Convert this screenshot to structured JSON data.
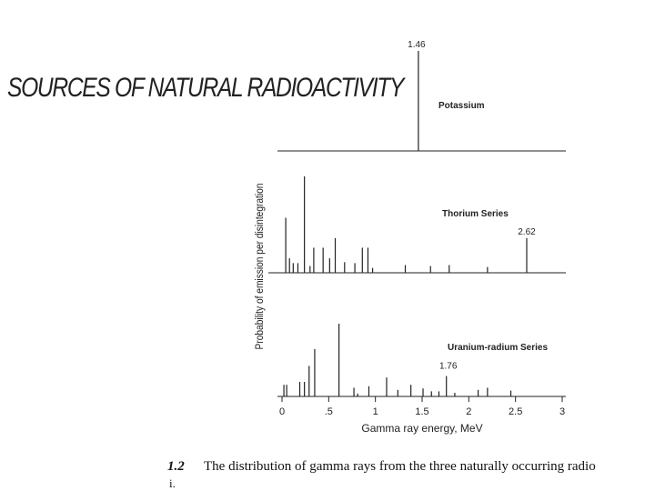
{
  "slide_title": "SOURCES OF NATURAL RADIOACTIVITY",
  "caption": {
    "number": "1.2",
    "text": "The distribution of gamma rays from the three naturally occurring radio",
    "second_line": "i."
  },
  "colors": {
    "line": "#222222",
    "background": "#ffffff"
  },
  "chart_data": {
    "type": "bar",
    "subtype": "line-spectrum",
    "xlabel": "Gamma ray energy, MeV",
    "ylabel": "Probability of emission per disintegration",
    "xlim": [
      0,
      3
    ],
    "xticks": [
      0,
      0.5,
      1,
      1.5,
      2,
      2.5,
      3
    ],
    "xtick_labels": [
      "0",
      ".5",
      "1",
      "1.5",
      "2",
      "2.5",
      "3"
    ],
    "panels": [
      {
        "name": "Potassium",
        "ylim": [
          0,
          1
        ],
        "peak_label": "1.46",
        "lines": [
          {
            "energy": 1.46,
            "intensity": 1.0
          }
        ]
      },
      {
        "name": "Thorium Series",
        "ylim": [
          0,
          1
        ],
        "peak_label": "2.62",
        "lines": [
          {
            "energy": 0.04,
            "intensity": 0.57
          },
          {
            "energy": 0.08,
            "intensity": 0.15
          },
          {
            "energy": 0.12,
            "intensity": 0.1
          },
          {
            "energy": 0.17,
            "intensity": 0.1
          },
          {
            "energy": 0.24,
            "intensity": 1.0
          },
          {
            "energy": 0.3,
            "intensity": 0.07
          },
          {
            "energy": 0.34,
            "intensity": 0.26
          },
          {
            "energy": 0.44,
            "intensity": 0.26
          },
          {
            "energy": 0.51,
            "intensity": 0.15
          },
          {
            "energy": 0.57,
            "intensity": 0.36
          },
          {
            "energy": 0.67,
            "intensity": 0.11
          },
          {
            "energy": 0.78,
            "intensity": 0.1
          },
          {
            "energy": 0.86,
            "intensity": 0.26
          },
          {
            "energy": 0.92,
            "intensity": 0.26
          },
          {
            "energy": 0.97,
            "intensity": 0.05
          },
          {
            "energy": 1.32,
            "intensity": 0.08
          },
          {
            "energy": 1.59,
            "intensity": 0.07
          },
          {
            "energy": 1.79,
            "intensity": 0.08
          },
          {
            "energy": 2.2,
            "intensity": 0.06
          },
          {
            "energy": 2.62,
            "intensity": 0.36
          }
        ]
      },
      {
        "name": "Uranium-radium Series",
        "ylim": [
          0,
          1
        ],
        "peak_label": "1.76",
        "lines": [
          {
            "energy": 0.02,
            "intensity": 0.16
          },
          {
            "energy": 0.05,
            "intensity": 0.16
          },
          {
            "energy": 0.19,
            "intensity": 0.2
          },
          {
            "energy": 0.24,
            "intensity": 0.2
          },
          {
            "energy": 0.29,
            "intensity": 0.42
          },
          {
            "energy": 0.35,
            "intensity": 0.65
          },
          {
            "energy": 0.61,
            "intensity": 1.0
          },
          {
            "energy": 0.77,
            "intensity": 0.12
          },
          {
            "energy": 0.81,
            "intensity": 0.04
          },
          {
            "energy": 0.93,
            "intensity": 0.14
          },
          {
            "energy": 1.12,
            "intensity": 0.26
          },
          {
            "energy": 1.24,
            "intensity": 0.09
          },
          {
            "energy": 1.38,
            "intensity": 0.16
          },
          {
            "energy": 1.51,
            "intensity": 0.11
          },
          {
            "energy": 1.6,
            "intensity": 0.07
          },
          {
            "energy": 1.68,
            "intensity": 0.07
          },
          {
            "energy": 1.76,
            "intensity": 0.28
          },
          {
            "energy": 1.85,
            "intensity": 0.05
          },
          {
            "energy": 2.1,
            "intensity": 0.09
          },
          {
            "energy": 2.2,
            "intensity": 0.12
          },
          {
            "energy": 2.45,
            "intensity": 0.08
          }
        ]
      }
    ]
  }
}
